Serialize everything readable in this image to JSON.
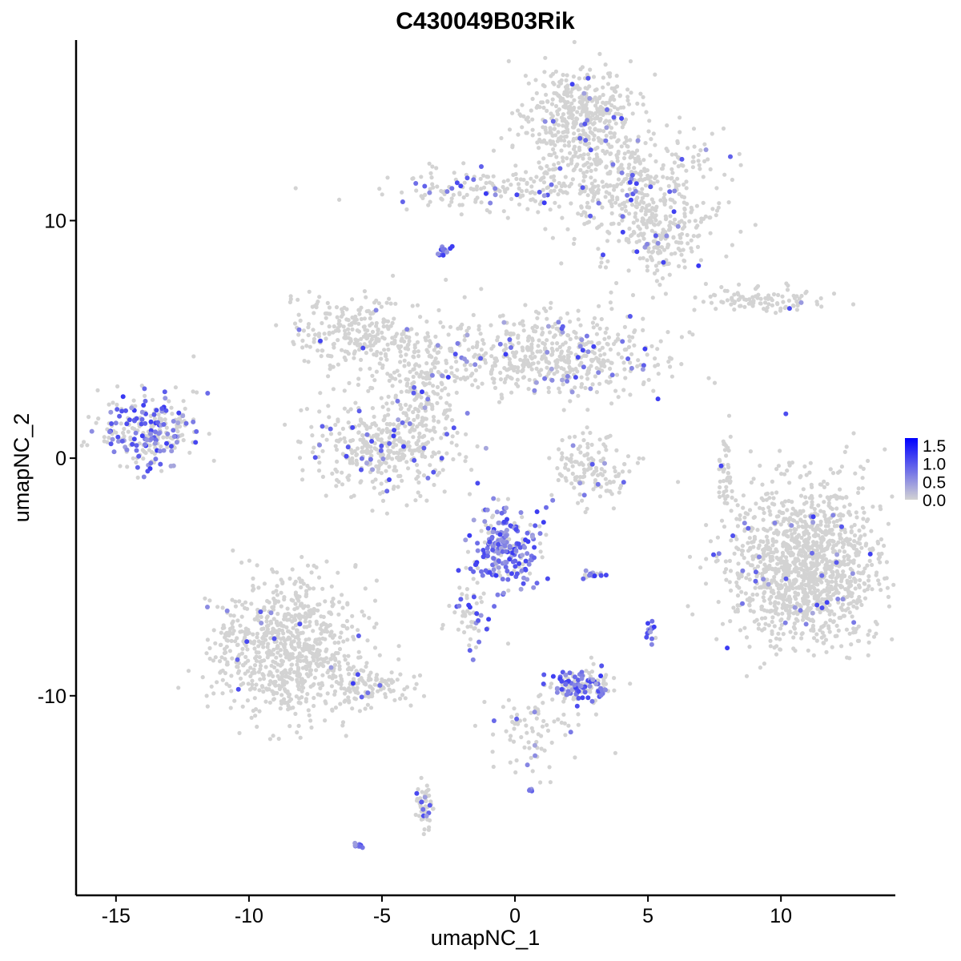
{
  "chart_data": {
    "type": "scatter",
    "title": "C430049B03Rik",
    "xlabel": "umapNC_1",
    "ylabel": "umapNC_2",
    "xlim": [
      -16.5,
      14.3
    ],
    "ylim": [
      -18.4,
      17.6
    ],
    "x_ticks": [
      {
        "value": -15,
        "label": "-15"
      },
      {
        "value": -10,
        "label": "-10"
      },
      {
        "value": -5,
        "label": "-5"
      },
      {
        "value": 0,
        "label": "0"
      },
      {
        "value": 5,
        "label": "5"
      },
      {
        "value": 10,
        "label": "10"
      }
    ],
    "y_ticks": [
      {
        "value": 10,
        "label": "10"
      },
      {
        "value": 0,
        "label": "0"
      },
      {
        "value": -10,
        "label": "-10"
      }
    ],
    "grid": false,
    "legend": {
      "placement": "right",
      "range": [
        0.0,
        1.7
      ],
      "breaks": [
        {
          "value": 1.5,
          "label": "1.5"
        },
        {
          "value": 1.0,
          "label": "1.0"
        },
        {
          "value": 0.5,
          "label": "0.5"
        },
        {
          "value": 0.0,
          "label": "0.0"
        }
      ],
      "low_color": "#d3d3d3",
      "high_color": "#0000ff"
    },
    "clusters": [
      {
        "name": "top-right-upper",
        "cx": 2.3,
        "cy": 14.5,
        "sx": 1.1,
        "sy": 1.2,
        "n": 420,
        "expr_rate": 0.03
      },
      {
        "name": "top-right-mid",
        "cx": 4.2,
        "cy": 11.5,
        "sx": 2.0,
        "sy": 1.3,
        "n": 420,
        "expr_rate": 0.04
      },
      {
        "name": "top-bridge",
        "cx": -0.8,
        "cy": 11.3,
        "sx": 2.2,
        "sy": 0.45,
        "n": 160,
        "expr_rate": 0.15
      },
      {
        "name": "top-right-lower",
        "cx": 5.5,
        "cy": 9.3,
        "sx": 1.0,
        "sy": 0.9,
        "n": 180,
        "expr_rate": 0.05
      },
      {
        "name": "small-dark",
        "cx": -2.7,
        "cy": 8.7,
        "sx": 0.15,
        "sy": 0.12,
        "n": 14,
        "expr_rate": 0.9
      },
      {
        "name": "center-upper-right",
        "cx": 1.5,
        "cy": 4.3,
        "sx": 2.3,
        "sy": 1.0,
        "n": 520,
        "expr_rate": 0.07
      },
      {
        "name": "center-upper-left",
        "cx": -6.0,
        "cy": 5.3,
        "sx": 1.3,
        "sy": 0.8,
        "n": 240,
        "expr_rate": 0.02
      },
      {
        "name": "center-stem",
        "cx": -3.6,
        "cy": 3.4,
        "sx": 0.9,
        "sy": 1.4,
        "n": 200,
        "expr_rate": 0.02
      },
      {
        "name": "center-lower-left",
        "cx": -4.9,
        "cy": 0.5,
        "sx": 1.5,
        "sy": 1.1,
        "n": 400,
        "expr_rate": 0.09
      },
      {
        "name": "far-left",
        "cx": -13.8,
        "cy": 1.2,
        "sx": 1.0,
        "sy": 0.8,
        "n": 260,
        "expr_rate": 0.4
      },
      {
        "name": "mid-right-small",
        "cx": 2.9,
        "cy": -0.5,
        "sx": 0.8,
        "sy": 0.9,
        "n": 140,
        "expr_rate": 0.06
      },
      {
        "name": "right-strip",
        "cx": 9.3,
        "cy": 6.7,
        "sx": 1.3,
        "sy": 0.3,
        "n": 100,
        "expr_rate": 0.02
      },
      {
        "name": "right-vertical",
        "cx": 7.9,
        "cy": -0.5,
        "sx": 0.15,
        "sy": 1.0,
        "n": 40,
        "expr_rate": 0.03
      },
      {
        "name": "right-large",
        "cx": 11.0,
        "cy": -4.6,
        "sx": 1.6,
        "sy": 1.9,
        "n": 1300,
        "expr_rate": 0.025
      },
      {
        "name": "center-bottom-blob",
        "cx": -0.4,
        "cy": -3.8,
        "sx": 0.7,
        "sy": 0.9,
        "n": 230,
        "expr_rate": 0.7
      },
      {
        "name": "center-tail",
        "cx": -1.5,
        "cy": -6.5,
        "sx": 0.5,
        "sy": 0.8,
        "n": 60,
        "expr_rate": 0.25
      },
      {
        "name": "left-large",
        "cx": -8.6,
        "cy": -8.0,
        "sx": 1.5,
        "sy": 1.6,
        "n": 800,
        "expr_rate": 0.02
      },
      {
        "name": "left-tail",
        "cx": -5.5,
        "cy": -9.6,
        "sx": 0.9,
        "sy": 0.5,
        "n": 120,
        "expr_rate": 0.05
      },
      {
        "name": "bottom-small",
        "cx": 2.4,
        "cy": -9.6,
        "sx": 0.6,
        "sy": 0.35,
        "n": 160,
        "expr_rate": 0.45
      },
      {
        "name": "bottom-branch",
        "cx": 0.8,
        "cy": -11.6,
        "sx": 1.0,
        "sy": 0.9,
        "n": 80,
        "expr_rate": 0.08
      },
      {
        "name": "bottom-left-stick",
        "cx": -3.4,
        "cy": -14.6,
        "sx": 0.2,
        "sy": 0.6,
        "n": 50,
        "expr_rate": 0.12
      },
      {
        "name": "tiny-blue-left",
        "cx": -5.9,
        "cy": -16.3,
        "sx": 0.12,
        "sy": 0.06,
        "n": 8,
        "expr_rate": 1.0
      },
      {
        "name": "tiny-mid-1",
        "cx": 2.9,
        "cy": -4.9,
        "sx": 0.3,
        "sy": 0.08,
        "n": 18,
        "expr_rate": 0.6
      },
      {
        "name": "tiny-mid-2",
        "cx": 5.1,
        "cy": -7.4,
        "sx": 0.1,
        "sy": 0.25,
        "n": 16,
        "expr_rate": 0.7
      },
      {
        "name": "tiny-mid-3",
        "cx": 0.6,
        "cy": -14.0,
        "sx": 0.05,
        "sy": 0.04,
        "n": 4,
        "expr_rate": 1.0
      }
    ]
  }
}
